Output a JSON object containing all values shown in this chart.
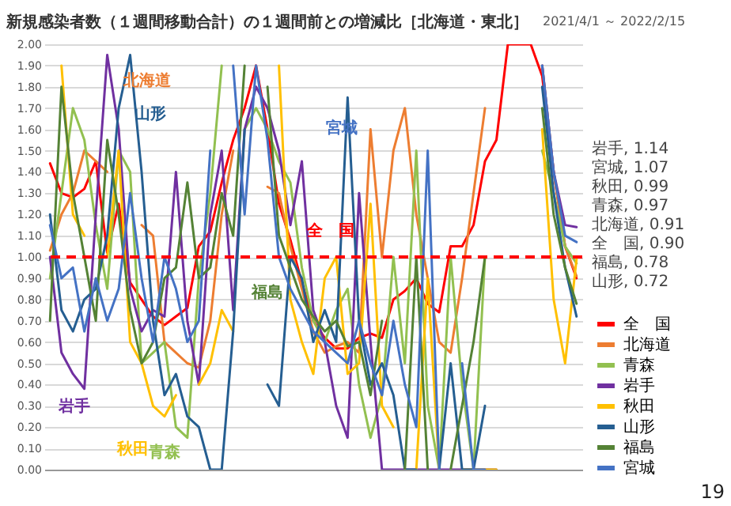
{
  "chart_data": {
    "type": "line",
    "title": "新規感染者数（１週間移動合計）の１週間前との増減比［北海道・東北］",
    "subtitle": "2021/4/1 ～ 2022/2/15",
    "categories": [
      null,
      null,
      null,
      null,
      null,
      null,
      null,
      null,
      null,
      null,
      null,
      null,
      null,
      null,
      null,
      null,
      null,
      null,
      null,
      null,
      null,
      null,
      null,
      null,
      null,
      null,
      null,
      null,
      null,
      null,
      null,
      null,
      null,
      null,
      null,
      null,
      null,
      null,
      null,
      null,
      null,
      null,
      null,
      null,
      null,
      null,
      null
    ],
    "series": [
      {
        "name": "全　国",
        "color": "#ff0000",
        "values": [
          1.44,
          1.3,
          1.28,
          1.32,
          1.45,
          1.02,
          1.25,
          0.88,
          0.8,
          0.72,
          0.68,
          0.72,
          0.76,
          1.05,
          1.12,
          1.35,
          1.55,
          1.7,
          1.9,
          1.6,
          1.25,
          1.08,
          0.88,
          0.7,
          0.62,
          0.57,
          0.57,
          0.62,
          0.64,
          0.62,
          0.8,
          0.84,
          0.9,
          0.78,
          0.74,
          1.05,
          1.05,
          1.15,
          1.45,
          1.55,
          2.0,
          2.0,
          2.0,
          1.85,
          1.4,
          1.05,
          0.9
        ]
      },
      {
        "name": "北海道",
        "color": "#ed7d31",
        "values": [
          1.03,
          1.2,
          1.3,
          1.5,
          1.45,
          1.4,
          null,
          null,
          1.15,
          1.1,
          0.6,
          0.55,
          0.5,
          0.48,
          0.7,
          1.2,
          1.5,
          null,
          null,
          1.33,
          1.3,
          1.05,
          0.85,
          0.65,
          0.55,
          0.58,
          0.6,
          0.55,
          1.6,
          1.0,
          1.5,
          1.7,
          1.2,
          0.9,
          0.6,
          0.55,
          0.9,
          1.3,
          1.7,
          null,
          null,
          null,
          null,
          1.9,
          1.4,
          1.05,
          0.91
        ]
      },
      {
        "name": "青森",
        "color": "#92c050",
        "values": [
          0.9,
          1.3,
          1.7,
          1.55,
          1.15,
          0.85,
          1.5,
          1.4,
          0.5,
          0.55,
          0.6,
          0.2,
          0.15,
          0.9,
          1.3,
          1.9,
          null,
          1.6,
          1.7,
          1.6,
          1.45,
          1.35,
          0.95,
          0.7,
          0.6,
          0.75,
          0.85,
          0.4,
          0.15,
          0.35,
          1.0,
          0.5,
          1.5,
          0.3,
          0.0,
          1.0,
          0.4,
          0.0,
          1.0,
          null,
          null,
          null,
          null,
          1.5,
          1.3,
          1.05,
          0.97
        ]
      },
      {
        "name": "岩手",
        "color": "#7030a0",
        "values": [
          1.0,
          0.55,
          0.45,
          0.38,
          1.2,
          1.95,
          1.6,
          0.85,
          0.65,
          0.75,
          0.72,
          1.4,
          0.7,
          0.4,
          1.2,
          1.5,
          0.75,
          1.6,
          1.8,
          1.7,
          1.5,
          1.15,
          1.45,
          0.75,
          0.6,
          0.3,
          0.15,
          1.3,
          0.6,
          0.0,
          0.0,
          0.0,
          0.0,
          0.0,
          0.0,
          0.0,
          0.0,
          0.0,
          0.0,
          0.0,
          null,
          null,
          null,
          1.9,
          1.4,
          1.15,
          1.14
        ]
      },
      {
        "name": "秋田",
        "color": "#ffc000",
        "values": [
          null,
          1.9,
          1.2,
          1.1,
          null,
          1.0,
          1.5,
          0.6,
          0.5,
          0.3,
          0.25,
          0.35,
          null,
          0.4,
          0.5,
          0.75,
          0.65,
          null,
          null,
          null,
          1.9,
          0.8,
          0.6,
          0.45,
          0.9,
          1.0,
          0.45,
          0.5,
          1.25,
          0.3,
          0.2,
          null,
          0.0,
          0.9,
          0.0,
          null,
          0.0,
          0.0,
          0.0,
          0.0,
          null,
          null,
          null,
          1.6,
          0.8,
          0.5,
          0.99
        ]
      },
      {
        "name": "山形",
        "color": "#255e91",
        "values": [
          1.2,
          0.75,
          0.65,
          0.8,
          0.85,
          1.1,
          1.7,
          1.95,
          1.4,
          0.7,
          0.35,
          0.45,
          0.25,
          0.2,
          0.0,
          0.0,
          0.65,
          1.6,
          null,
          0.4,
          0.3,
          1.0,
          0.9,
          0.6,
          0.75,
          0.6,
          1.75,
          0.7,
          0.4,
          0.5,
          0.35,
          0.0,
          0.0,
          null,
          0.0,
          0.5,
          0.0,
          0.0,
          0.3,
          null,
          null,
          null,
          null,
          1.8,
          1.3,
          0.95,
          0.72
        ]
      },
      {
        "name": "福島",
        "color": "#548235",
        "values": [
          0.7,
          1.8,
          1.3,
          1.0,
          0.7,
          1.55,
          1.2,
          0.75,
          0.5,
          0.6,
          0.9,
          0.95,
          1.35,
          0.9,
          0.95,
          1.3,
          1.1,
          1.9,
          null,
          1.8,
          1.1,
          0.95,
          0.8,
          0.72,
          0.65,
          0.7,
          0.58,
          0.6,
          0.35,
          0.7,
          null,
          0.0,
          1.0,
          0.0,
          null,
          0.0,
          0.3,
          0.6,
          1.0,
          null,
          null,
          null,
          null,
          1.7,
          1.2,
          0.95,
          0.78
        ]
      },
      {
        "name": "宮城",
        "color": "#4472c4",
        "values": [
          1.15,
          0.9,
          0.95,
          0.65,
          0.9,
          0.7,
          0.85,
          1.3,
          0.9,
          0.6,
          1.0,
          0.85,
          0.6,
          0.7,
          1.5,
          null,
          1.9,
          1.2,
          1.9,
          1.55,
          1.0,
          0.85,
          0.75,
          0.65,
          0.6,
          0.55,
          0.5,
          0.7,
          0.5,
          0.35,
          0.7,
          0.4,
          0.2,
          1.5,
          0.0,
          null,
          0.5,
          0.0,
          0.0,
          null,
          null,
          null,
          null,
          1.9,
          1.4,
          1.1,
          1.07
        ]
      }
    ],
    "ylim": [
      0,
      2
    ],
    "yticks": [
      {
        "value": 0,
        "label": "0.00"
      },
      {
        "value": 0.1,
        "label": "0.10"
      },
      {
        "value": 0.2,
        "label": "0.20"
      },
      {
        "value": 0.3,
        "label": "0.30"
      },
      {
        "value": 0.4,
        "label": "0.40"
      },
      {
        "value": 0.5,
        "label": "0.50"
      },
      {
        "value": 0.6,
        "label": "0.60"
      },
      {
        "value": 0.7,
        "label": "0.70"
      },
      {
        "value": 0.8,
        "label": "0.80"
      },
      {
        "value": 0.9,
        "label": "0.90"
      },
      {
        "value": 1,
        "label": "1.00"
      },
      {
        "value": 1.1,
        "label": "1.10"
      },
      {
        "value": 1.2,
        "label": "1.20"
      },
      {
        "value": 1.3,
        "label": "1.30"
      },
      {
        "value": 1.4,
        "label": "1.40"
      },
      {
        "value": 1.5,
        "label": "1.50"
      },
      {
        "value": 1.6,
        "label": "1.60"
      },
      {
        "value": 1.7,
        "label": "1.70"
      },
      {
        "value": 1.8,
        "label": "1.80"
      },
      {
        "value": 1.9,
        "label": "1.90"
      },
      {
        "value": 2,
        "label": "2.00"
      }
    ],
    "ref_lines": [
      {
        "axis": "y",
        "value": 1,
        "color": "#ff0000",
        "line_style": "dashed"
      }
    ],
    "grid": "y",
    "legend": "bottom right",
    "tick_labels": "y",
    "line_style": "solid",
    "marker": "none",
    "annotations": [
      "北海道",
      "山形",
      "宮城",
      "全　国",
      "福島",
      "岩手",
      "秋田",
      "青森",
      "岩手, 1.14",
      "宮城, 1.07",
      "秋田, 0.99",
      "青森, 0.97",
      "北海道, 0.91",
      "全　国, 0.90",
      "福島, 0.78",
      "山形, 0.72",
      "19"
    ]
  }
}
